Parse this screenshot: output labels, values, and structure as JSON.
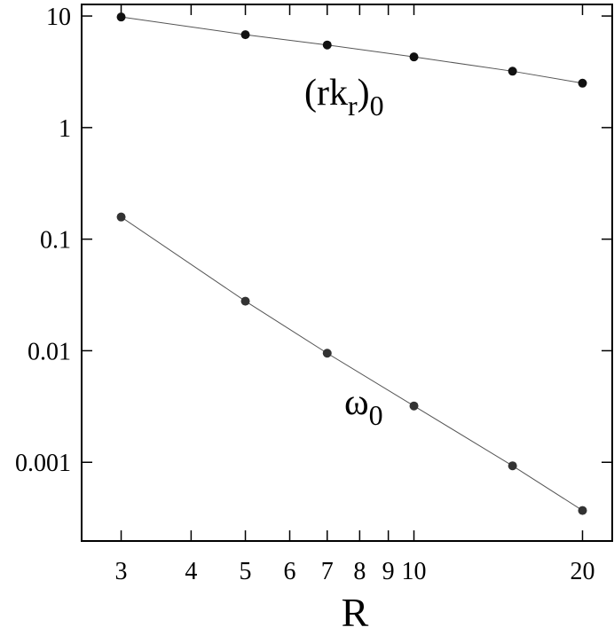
{
  "chart_data": {
    "type": "line",
    "log_x": true,
    "log_y": true,
    "xlabel": "R",
    "xlim": [
      2.55,
      22.6
    ],
    "xticks": [
      3,
      4,
      5,
      6,
      7,
      8,
      9,
      10,
      20
    ],
    "ylim": [
      0.000197,
      12.7
    ],
    "yticks": [
      10,
      1,
      0.1,
      0.01,
      0.001
    ],
    "series": [
      {
        "name": [
          "(rk",
          "r",
          ")",
          "0"
        ],
        "color": "#111111",
        "x": [
          3,
          5,
          7,
          10,
          15,
          20
        ],
        "values": [
          9.8,
          6.8,
          5.5,
          4.3,
          3.2,
          2.5
        ]
      },
      {
        "name": [
          "ω",
          "0"
        ],
        "color": "#333333",
        "x": [
          3,
          5,
          7,
          10,
          15,
          20
        ],
        "values": [
          0.158,
          0.0278,
          0.0095,
          0.0032,
          0.00093,
          0.00037
        ]
      }
    ]
  }
}
